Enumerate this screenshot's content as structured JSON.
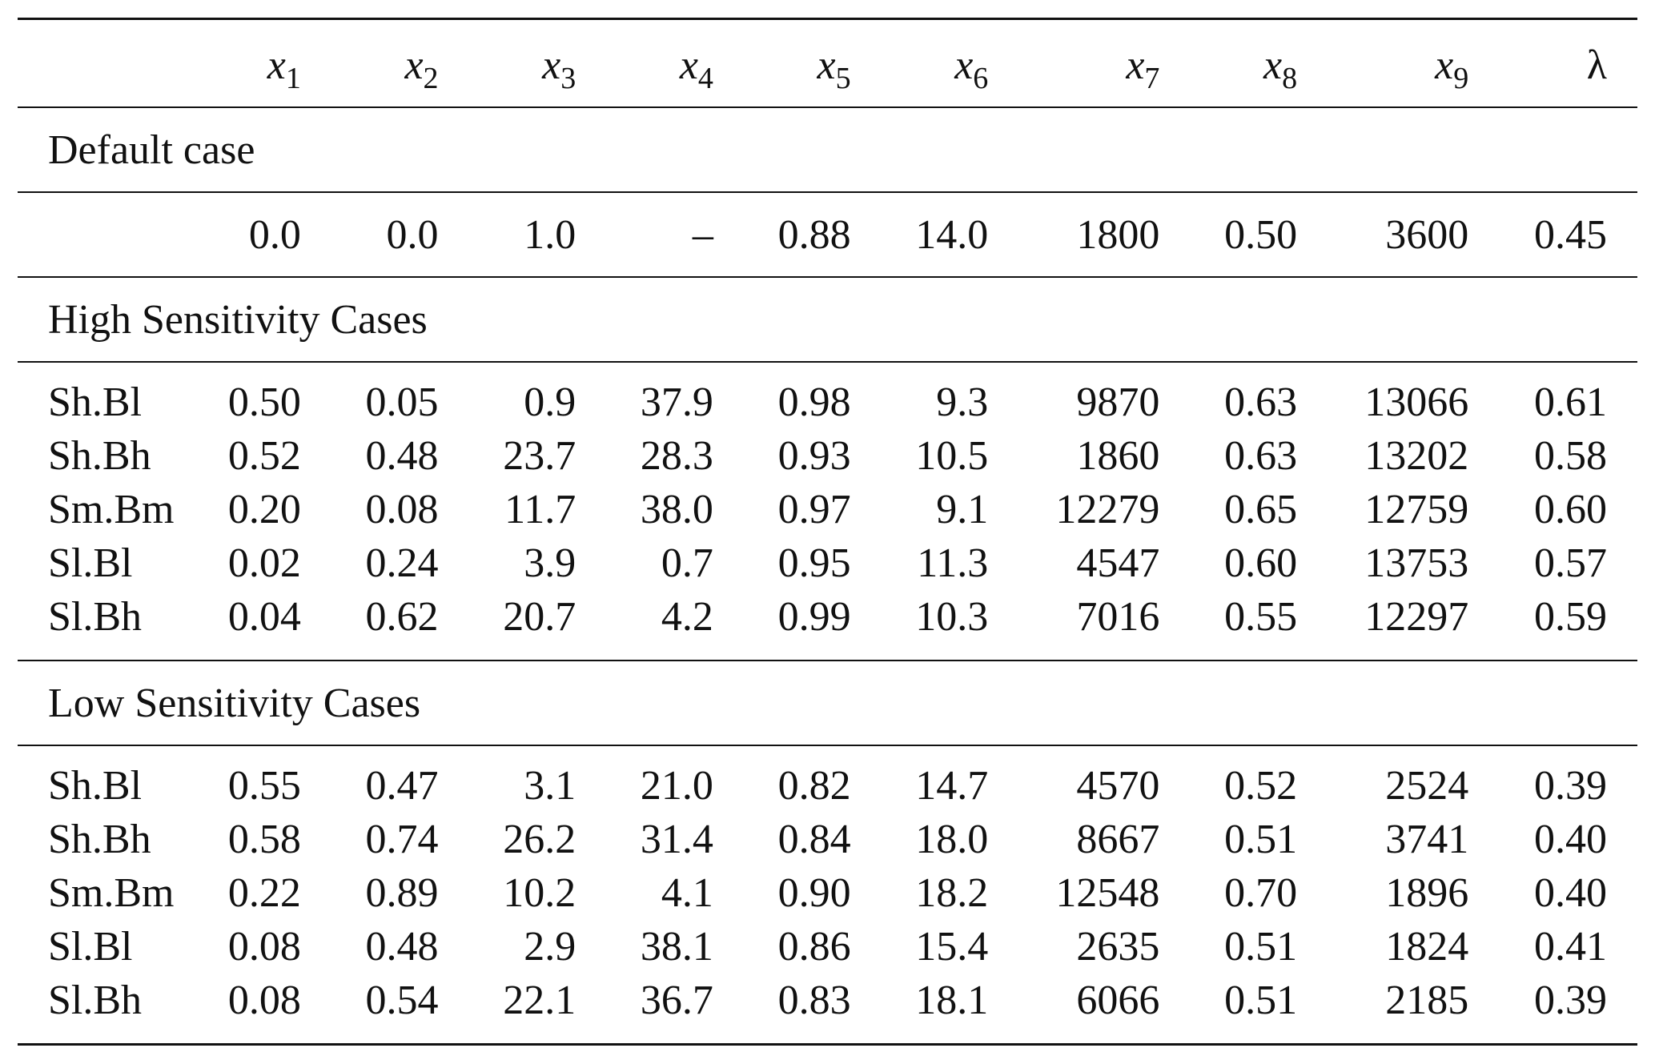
{
  "table": {
    "columns": [
      {
        "var": "x",
        "sub": "1"
      },
      {
        "var": "x",
        "sub": "2"
      },
      {
        "var": "x",
        "sub": "3"
      },
      {
        "var": "x",
        "sub": "4"
      },
      {
        "var": "x",
        "sub": "5"
      },
      {
        "var": "x",
        "sub": "6"
      },
      {
        "var": "x",
        "sub": "7"
      },
      {
        "var": "x",
        "sub": "8"
      },
      {
        "var": "x",
        "sub": "9"
      },
      {
        "var": "λ",
        "sub": ""
      }
    ],
    "default_section": {
      "title": "Default case",
      "values": [
        "0.0",
        "0.0",
        "1.0",
        "–",
        "0.88",
        "14.0",
        "1800",
        "0.50",
        "3600",
        "0.45"
      ]
    },
    "high_section": {
      "title": "High Sensitivity Cases",
      "rows": [
        {
          "label": "Sh.Bl",
          "values": [
            "0.50",
            "0.05",
            "0.9",
            "37.9",
            "0.98",
            "9.3",
            "9870",
            "0.63",
            "13066",
            "0.61"
          ]
        },
        {
          "label": "Sh.Bh",
          "values": [
            "0.52",
            "0.48",
            "23.7",
            "28.3",
            "0.93",
            "10.5",
            "1860",
            "0.63",
            "13202",
            "0.58"
          ]
        },
        {
          "label": "Sm.Bm",
          "values": [
            "0.20",
            "0.08",
            "11.7",
            "38.0",
            "0.97",
            "9.1",
            "12279",
            "0.65",
            "12759",
            "0.60"
          ]
        },
        {
          "label": "Sl.Bl",
          "values": [
            "0.02",
            "0.24",
            "3.9",
            "0.7",
            "0.95",
            "11.3",
            "4547",
            "0.60",
            "13753",
            "0.57"
          ]
        },
        {
          "label": "Sl.Bh",
          "values": [
            "0.04",
            "0.62",
            "20.7",
            "4.2",
            "0.99",
            "10.3",
            "7016",
            "0.55",
            "12297",
            "0.59"
          ]
        }
      ]
    },
    "low_section": {
      "title": "Low Sensitivity Cases",
      "rows": [
        {
          "label": "Sh.Bl",
          "values": [
            "0.55",
            "0.47",
            "3.1",
            "21.0",
            "0.82",
            "14.7",
            "4570",
            "0.52",
            "2524",
            "0.39"
          ]
        },
        {
          "label": "Sh.Bh",
          "values": [
            "0.58",
            "0.74",
            "26.2",
            "31.4",
            "0.84",
            "18.0",
            "8667",
            "0.51",
            "3741",
            "0.40"
          ]
        },
        {
          "label": "Sm.Bm",
          "values": [
            "0.22",
            "0.89",
            "10.2",
            "4.1",
            "0.90",
            "18.2",
            "12548",
            "0.70",
            "1896",
            "0.40"
          ]
        },
        {
          "label": "Sl.Bl",
          "values": [
            "0.08",
            "0.48",
            "2.9",
            "38.1",
            "0.86",
            "15.4",
            "2635",
            "0.51",
            "1824",
            "0.41"
          ]
        },
        {
          "label": "Sl.Bh",
          "values": [
            "0.08",
            "0.54",
            "22.1",
            "36.7",
            "0.83",
            "18.1",
            "6066",
            "0.51",
            "2185",
            "0.39"
          ]
        }
      ]
    }
  }
}
